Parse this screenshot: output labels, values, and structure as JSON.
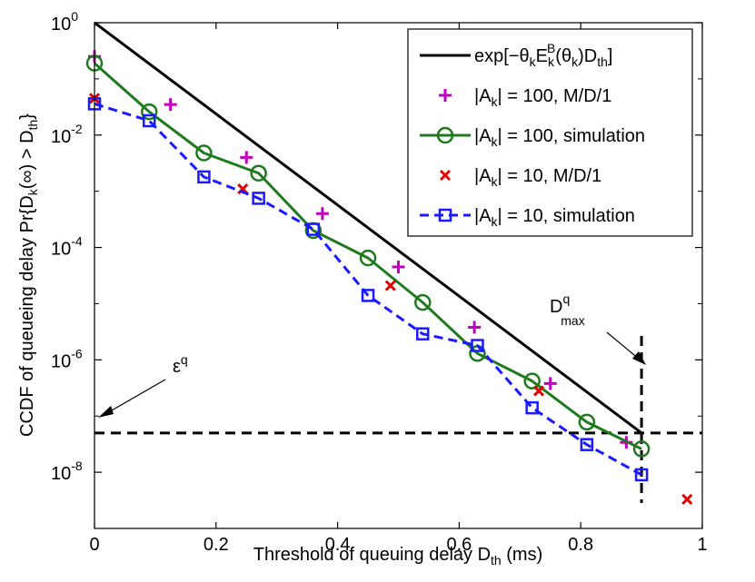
{
  "chart_data": {
    "type": "line",
    "xlabel": "Threshold of queuing delay D",
    "xlabel_sub": "th",
    "xlabel_suffix": " (ms)",
    "ylabel": "CCDF of queueing delay Pr{D",
    "ylabel_sub1": "k",
    "ylabel_mid": "(∞) > D",
    "ylabel_sub2": "th",
    "ylabel_end": "}",
    "xlim": [
      0,
      1
    ],
    "ylim_log10": [
      -9,
      0
    ],
    "yscale": "log",
    "x_ticks": [
      0,
      0.2,
      0.4,
      0.6,
      0.8,
      1
    ],
    "x_tick_labels": [
      "0",
      "0.2",
      "0.4",
      "0.6",
      "0.8",
      "1"
    ],
    "y_ticks_exp": [
      0,
      -2,
      -4,
      -6,
      -8
    ],
    "y_tick_base": "10",
    "y_tick_exp_labels": [
      "0",
      "-2",
      "-4",
      "-6",
      "-8"
    ],
    "grid": false,
    "legend_position": "top-right",
    "series": [
      {
        "name": "exp[−θkEkB(θk)Dth]",
        "legend_parts": [
          "exp[−θ",
          "k",
          "E",
          "k",
          "B",
          "(θ",
          "k",
          ")D",
          "th",
          "]"
        ],
        "style": "solid",
        "color": "#000000",
        "marker": "none",
        "x": [
          0,
          0.9
        ],
        "y": [
          1,
          5e-08
        ]
      },
      {
        "name": "|Ak| = 100, M/D/1",
        "legend_parts": [
          "|A",
          "k",
          "| = 100, M/D/1"
        ],
        "style": "none",
        "color": "#bf00bf",
        "marker": "plus",
        "x": [
          0,
          0.125,
          0.25,
          0.375,
          0.5,
          0.625,
          0.75,
          0.875
        ],
        "y": [
          0.25,
          0.035,
          0.004,
          0.0004,
          4.5e-05,
          3.8e-06,
          3.8e-07,
          3.4e-08
        ]
      },
      {
        "name": "|Ak| = 100, simulation",
        "legend_parts": [
          "|A",
          "k",
          "| = 100, simulation"
        ],
        "style": "solid",
        "color": "#1f7a1f",
        "marker": "circle",
        "x": [
          0,
          0.09,
          0.18,
          0.27,
          0.36,
          0.45,
          0.54,
          0.63,
          0.72,
          0.81,
          0.9
        ],
        "y": [
          0.19,
          0.026,
          0.0048,
          0.0021,
          0.0002,
          6.5e-05,
          1.05e-05,
          1.3e-06,
          4.2e-07,
          7.8e-08,
          2.6e-08
        ]
      },
      {
        "name": "|Ak| = 10, M/D/1",
        "legend_parts": [
          "|A",
          "k",
          "| = 10, M/D/1"
        ],
        "style": "none",
        "color": "#e00000",
        "marker": "x",
        "x": [
          0,
          0.244,
          0.487,
          0.731,
          0.975
        ],
        "y": [
          0.045,
          0.0011,
          2.1e-05,
          2.8e-07,
          3.3e-09
        ]
      },
      {
        "name": "|Ak| = 10, simulation",
        "legend_parts": [
          "|A",
          "k",
          "| = 10, simulation"
        ],
        "style": "dashed",
        "color": "#1a1aff",
        "marker": "square",
        "x": [
          0,
          0.09,
          0.18,
          0.27,
          0.36,
          0.45,
          0.54,
          0.63,
          0.72,
          0.81,
          0.9
        ],
        "y": [
          0.036,
          0.018,
          0.0018,
          0.00075,
          0.00021,
          1.4e-05,
          2.9e-06,
          1.8e-06,
          1.4e-07,
          3.1e-08,
          9e-09
        ]
      }
    ],
    "reference_lines": [
      {
        "orientation": "horizontal",
        "value": 5e-08,
        "style": "dashed"
      },
      {
        "orientation": "vertical",
        "value": 0.9,
        "style": "dashed"
      }
    ],
    "annotations": [
      {
        "text": "ε",
        "sup": "q",
        "arrow_to": [
          0,
          5e-08
        ]
      },
      {
        "text": "D",
        "sup": "q",
        "sub": "max",
        "arrow_to": [
          0.9,
          4e-07
        ]
      }
    ]
  }
}
